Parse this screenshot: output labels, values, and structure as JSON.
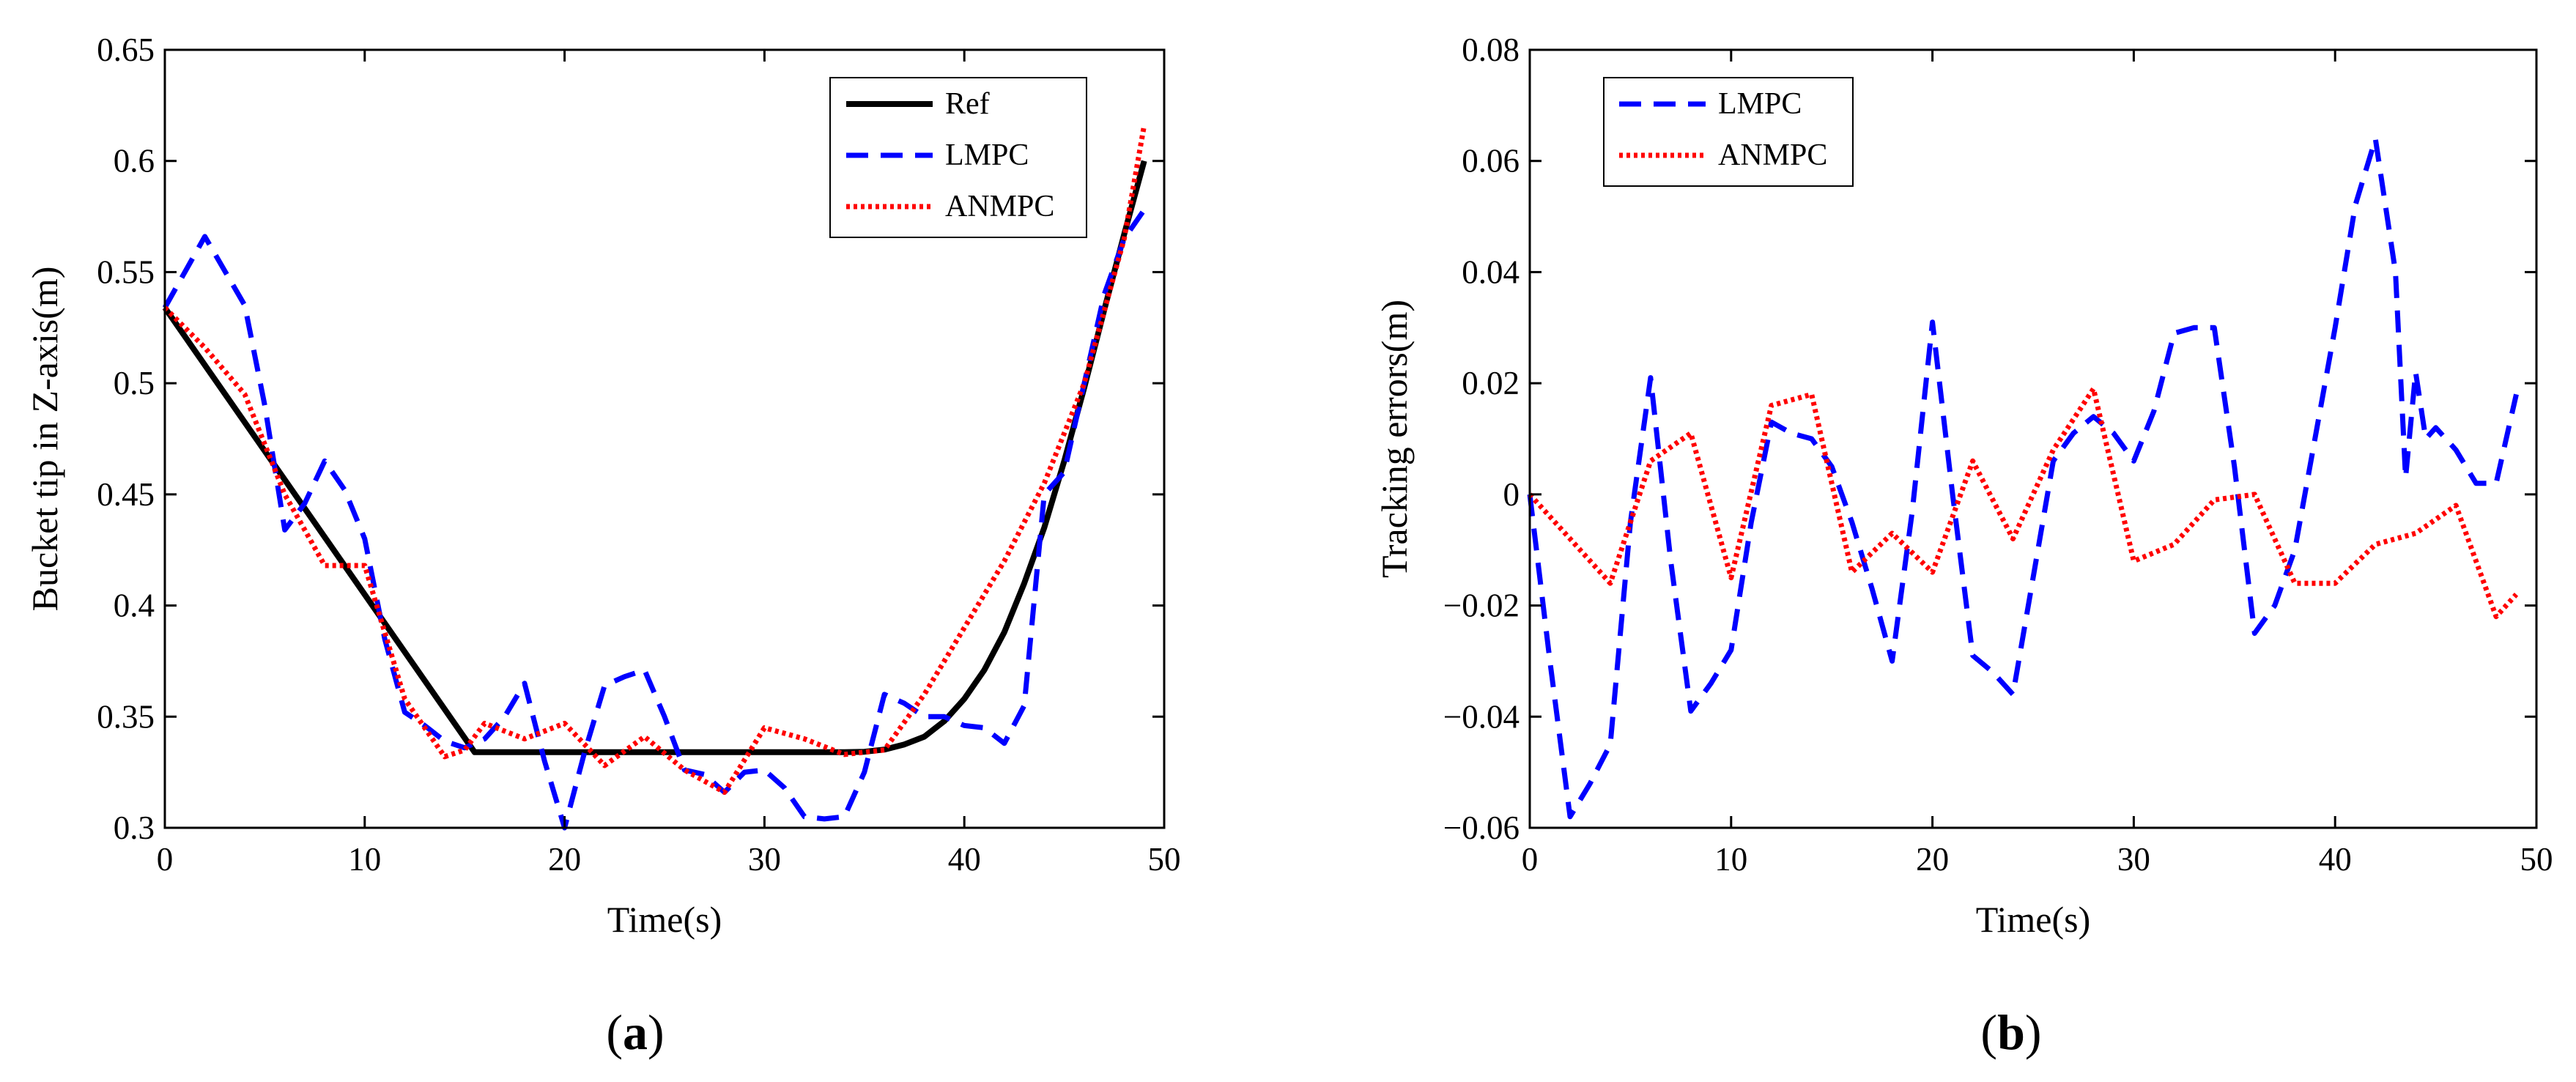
{
  "chart_data": [
    {
      "panel": "a",
      "caption_open": "(",
      "caption_letter": "a",
      "caption_close": ")",
      "type": "line",
      "title": "",
      "xlabel": "Time(s)",
      "ylabel": "Bucket tip in Z-axis(m)",
      "xlim": [
        0,
        50
      ],
      "ylim": [
        0.3,
        0.65
      ],
      "xticks": [
        0,
        10,
        20,
        30,
        40,
        50
      ],
      "xtick_labels": [
        "0",
        "10",
        "20",
        "30",
        "40",
        "50"
      ],
      "yticks": [
        0.3,
        0.35,
        0.4,
        0.45,
        0.5,
        0.55,
        0.6,
        0.65
      ],
      "ytick_labels": [
        "0.3",
        "0.35",
        "0.4",
        "0.45",
        "0.5",
        "0.55",
        "0.6",
        "0.65"
      ],
      "grid": false,
      "legend_position": "top-right",
      "series": [
        {
          "name": "Ref",
          "color": "#000000",
          "style": "solid",
          "x": [
            0,
            15.5,
            34,
            35,
            36,
            37,
            38,
            39,
            40,
            41,
            42,
            43,
            44,
            45,
            46,
            47,
            48,
            49
          ],
          "y": [
            0.534,
            0.334,
            0.334,
            0.3342,
            0.3352,
            0.3375,
            0.341,
            0.348,
            0.358,
            0.371,
            0.388,
            0.41,
            0.435,
            0.465,
            0.498,
            0.533,
            0.567,
            0.6
          ]
        },
        {
          "name": "LMPC",
          "color": "#0000ff",
          "style": "dashed",
          "x": [
            0,
            2,
            4,
            5,
            6,
            7,
            8,
            9,
            10,
            11,
            12,
            13,
            14,
            15,
            16,
            17,
            18,
            19,
            20,
            21,
            22,
            23,
            24,
            25,
            26,
            27,
            28,
            29,
            30,
            31,
            32,
            33,
            34,
            35,
            36,
            37,
            38,
            39,
            40,
            41,
            42,
            43,
            44,
            45,
            46,
            47,
            48,
            49
          ],
          "y": [
            0.534,
            0.566,
            0.535,
            0.49,
            0.434,
            0.446,
            0.465,
            0.452,
            0.43,
            0.385,
            0.352,
            0.346,
            0.339,
            0.336,
            0.34,
            0.35,
            0.365,
            0.33,
            0.3,
            0.334,
            0.364,
            0.368,
            0.371,
            0.35,
            0.326,
            0.324,
            0.316,
            0.325,
            0.326,
            0.318,
            0.305,
            0.304,
            0.305,
            0.325,
            0.36,
            0.356,
            0.35,
            0.35,
            0.346,
            0.345,
            0.338,
            0.355,
            0.45,
            0.46,
            0.5,
            0.54,
            0.565,
            0.578
          ]
        },
        {
          "name": "ANMPC",
          "color": "#ff0000",
          "style": "dotted",
          "x": [
            0,
            2,
            4,
            6,
            8,
            10,
            12,
            14,
            15,
            16,
            18,
            20,
            22,
            24,
            26,
            28,
            30,
            32,
            34,
            36,
            38,
            40,
            42,
            44,
            46,
            48,
            49
          ],
          "y": [
            0.534,
            0.516,
            0.495,
            0.45,
            0.418,
            0.418,
            0.358,
            0.332,
            0.335,
            0.347,
            0.34,
            0.347,
            0.328,
            0.341,
            0.326,
            0.316,
            0.345,
            0.34,
            0.333,
            0.335,
            0.36,
            0.39,
            0.42,
            0.455,
            0.5,
            0.565,
            0.616
          ]
        }
      ]
    },
    {
      "panel": "b",
      "caption_open": "(",
      "caption_letter": "b",
      "caption_close": ")",
      "type": "line",
      "title": "",
      "xlabel": "Time(s)",
      "ylabel": "Tracking errors(m)",
      "xlim": [
        0,
        50
      ],
      "ylim": [
        -0.06,
        0.08
      ],
      "xticks": [
        0,
        10,
        20,
        30,
        40,
        50
      ],
      "xtick_labels": [
        "0",
        "10",
        "20",
        "30",
        "40",
        "50"
      ],
      "yticks": [
        -0.06,
        -0.04,
        -0.02,
        0,
        0.02,
        0.04,
        0.06,
        0.08
      ],
      "ytick_labels": [
        "−0.06",
        "−0.04",
        "−0.02",
        "0",
        "0.02",
        "0.04",
        "0.06",
        "0.08"
      ],
      "grid": false,
      "legend_position": "top-left",
      "series": [
        {
          "name": "LMPC",
          "color": "#0000ff",
          "style": "dashed",
          "x": [
            0,
            1,
            2,
            3,
            4,
            5,
            6,
            7,
            8,
            9,
            10,
            11,
            12,
            13,
            14,
            15,
            16,
            17,
            18,
            19,
            20,
            21,
            22,
            23,
            24,
            25,
            26,
            27,
            28,
            29,
            30,
            31,
            32,
            33,
            34,
            35,
            36,
            37,
            38,
            39,
            40,
            41,
            42,
            43,
            43.5,
            44,
            44.5,
            45,
            46,
            47,
            48,
            49
          ],
          "y": [
            0,
            -0.03,
            -0.058,
            -0.052,
            -0.045,
            -0.005,
            0.021,
            -0.012,
            -0.039,
            -0.034,
            -0.028,
            -0.005,
            0.013,
            0.011,
            0.01,
            0.005,
            -0.005,
            -0.017,
            -0.03,
            -0.003,
            0.031,
            0.0,
            -0.029,
            -0.032,
            -0.036,
            -0.015,
            0.006,
            0.011,
            0.014,
            0.011,
            0.006,
            0.015,
            0.029,
            0.03,
            0.03,
            0.005,
            -0.025,
            -0.02,
            -0.01,
            0.01,
            0.03,
            0.052,
            0.064,
            0.04,
            0.003,
            0.022,
            0.01,
            0.012,
            0.008,
            0.002,
            0.002,
            0.018
          ]
        },
        {
          "name": "ANMPC",
          "color": "#ff0000",
          "style": "dotted",
          "x": [
            0,
            2,
            4,
            6,
            8,
            10,
            12,
            14,
            16,
            18,
            20,
            22,
            24,
            26,
            28,
            30,
            32,
            34,
            36,
            38,
            40,
            42,
            44,
            46,
            48,
            49
          ],
          "y": [
            0,
            -0.008,
            -0.016,
            0.006,
            0.011,
            -0.015,
            0.016,
            0.018,
            -0.014,
            -0.007,
            -0.014,
            0.006,
            -0.008,
            0.008,
            0.019,
            -0.012,
            -0.009,
            -0.001,
            0.0,
            -0.016,
            -0.016,
            -0.009,
            -0.007,
            -0.002,
            -0.022,
            -0.018
          ]
        }
      ]
    }
  ]
}
